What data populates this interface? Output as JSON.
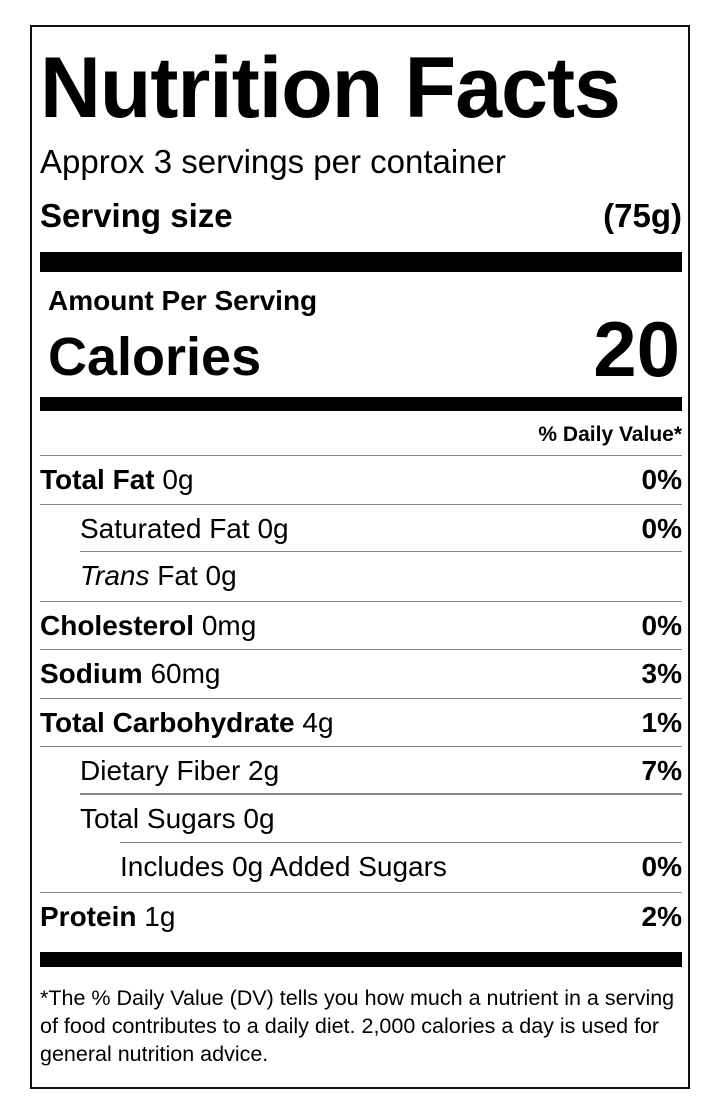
{
  "title": "Nutrition Facts",
  "servings_per_container": "Approx 3 servings per container",
  "serving_size": {
    "label": "Serving size",
    "value": "(75g)"
  },
  "amount_per_serving": "Amount Per Serving",
  "calories": {
    "label": "Calories",
    "value": "20"
  },
  "daily_value_header": "% Daily Value*",
  "nutrients": [
    {
      "name": "Total Fat",
      "amount": "0g",
      "dv": "0%",
      "bold": true,
      "indent": 0
    },
    {
      "name": "Saturated Fat",
      "amount": "0g",
      "dv": "0%",
      "bold": false,
      "indent": 1
    },
    {
      "name": "Trans",
      "name_suffix": "Fat",
      "amount": "0g",
      "dv": "",
      "bold": false,
      "indent": 1,
      "italic_prefix": true
    },
    {
      "name": "Cholesterol",
      "amount": "0mg",
      "dv": "0%",
      "bold": true,
      "indent": 0
    },
    {
      "name": "Sodium",
      "amount": "60mg",
      "dv": "3%",
      "bold": true,
      "indent": 0
    },
    {
      "name": "Total Carbohydrate",
      "amount": "4g",
      "dv": "1%",
      "bold": true,
      "indent": 0
    },
    {
      "name": "Dietary Fiber",
      "amount": "2g",
      "dv": "7%",
      "bold": false,
      "indent": 1
    },
    {
      "name": "Total Sugars",
      "amount": "0g",
      "dv": "",
      "bold": false,
      "indent": 1
    },
    {
      "name": "Includes 0g Added Sugars",
      "amount": "",
      "dv": "0%",
      "bold": false,
      "indent": 2
    },
    {
      "name": "Protein",
      "amount": "1g",
      "dv": "2%",
      "bold": true,
      "indent": 0
    }
  ],
  "footnote": "*The % Daily Value (DV) tells you how much a nutrient in a serving of food contributes to a daily diet. 2,000 calories a day is used for general nutrition advice."
}
